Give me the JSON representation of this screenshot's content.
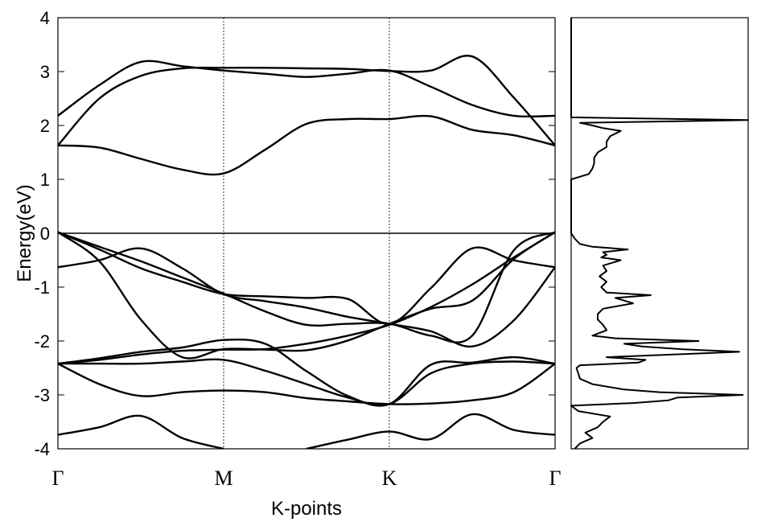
{
  "chart_data": [
    {
      "type": "line",
      "title": "",
      "xlabel": "K-points",
      "ylabel": "Energy(eV)",
      "ylim": [
        -4,
        4
      ],
      "yticks": [
        -4,
        -3,
        -2,
        -1,
        0,
        1,
        2,
        3,
        4
      ],
      "x_ticks": [
        "Γ",
        "M",
        "K",
        "Γ"
      ],
      "x_tick_positions": [
        0,
        1,
        2,
        3
      ],
      "grid": false,
      "fermi_level": 0,
      "x": [
        0,
        0.25,
        0.5,
        0.75,
        1.0,
        1.25,
        1.5,
        1.75,
        2.0,
        2.25,
        2.5,
        2.75,
        3.0
      ],
      "series": [
        {
          "values": [
            2.18,
            2.75,
            3.18,
            3.1,
            3.02,
            2.96,
            2.9,
            2.96,
            3.02,
            2.72,
            2.38,
            2.18,
            2.18
          ]
        },
        {
          "values": [
            1.63,
            2.5,
            2.92,
            3.06,
            3.07,
            3.07,
            3.06,
            3.05,
            3.01,
            3.02,
            3.28,
            2.52,
            1.63
          ]
        },
        {
          "values": [
            1.63,
            1.59,
            1.38,
            1.18,
            1.11,
            1.55,
            2.03,
            2.12,
            2.12,
            2.17,
            1.92,
            1.82,
            1.63
          ]
        },
        {
          "values": [
            0.02,
            -0.52,
            -1.6,
            -2.3,
            -2.15,
            -2.16,
            -2.17,
            -1.99,
            -1.68,
            -1.4,
            -1.25,
            -0.48,
            0.02
          ]
        },
        {
          "values": [
            0.02,
            -0.25,
            -0.52,
            -0.82,
            -1.12,
            -1.45,
            -1.7,
            -1.68,
            -1.68,
            -1.9,
            -1.9,
            -0.32,
            0.02
          ]
        },
        {
          "values": [
            -0.63,
            -0.5,
            -0.28,
            -0.65,
            -1.13,
            -1.26,
            -1.38,
            -1.55,
            -1.68,
            -1.82,
            -2.1,
            -1.62,
            -0.63
          ]
        },
        {
          "values": [
            0.02,
            -0.3,
            -0.65,
            -0.9,
            -1.13,
            -1.17,
            -1.2,
            -1.22,
            -1.68,
            -1.02,
            -0.28,
            -0.5,
            -0.63
          ]
        },
        {
          "values": [
            -2.42,
            -2.35,
            -2.25,
            -2.18,
            -2.16,
            -2.15,
            -2.05,
            -1.9,
            -1.7,
            -1.37,
            -0.95,
            -0.45,
            0.02
          ]
        },
        {
          "values": [
            -2.42,
            -2.32,
            -2.2,
            -2.12,
            -1.98,
            -2.05,
            -2.56,
            -3.02,
            -3.17,
            -2.44,
            -2.4,
            -2.3,
            -2.42
          ]
        },
        {
          "values": [
            -2.42,
            -2.8,
            -3.02,
            -2.95,
            -2.92,
            -2.95,
            -3.06,
            -3.12,
            -3.17,
            -3.16,
            -3.1,
            -2.95,
            -2.42
          ]
        },
        {
          "values": [
            -2.42,
            -2.42,
            -2.42,
            -2.38,
            -2.35,
            -2.55,
            -2.8,
            -3.05,
            -3.17,
            -2.6,
            -2.42,
            -2.38,
            -2.42
          ]
        },
        {
          "values": [
            -3.74,
            -3.6,
            -3.39,
            -3.8,
            -4.0,
            null,
            -4.0,
            -3.83,
            -3.68,
            -3.82,
            -3.36,
            -3.65,
            -3.74
          ]
        }
      ]
    },
    {
      "type": "line",
      "title": "",
      "xlabel": "",
      "ylabel": "",
      "ylim": [
        -4,
        4
      ],
      "orientation": "vertical",
      "grid": false,
      "energy": [
        -4.0,
        -3.9,
        -3.8,
        -3.7,
        -3.6,
        -3.5,
        -3.4,
        -3.3,
        -3.2,
        -3.15,
        -3.1,
        -3.05,
        -3.0,
        -2.95,
        -2.9,
        -2.8,
        -2.7,
        -2.6,
        -2.5,
        -2.45,
        -2.4,
        -2.35,
        -2.3,
        -2.2,
        -2.15,
        -2.1,
        -2.05,
        -2.0,
        -1.95,
        -1.9,
        -1.8,
        -1.7,
        -1.6,
        -1.5,
        -1.4,
        -1.3,
        -1.2,
        -1.15,
        -1.1,
        -1.0,
        -0.9,
        -0.8,
        -0.7,
        -0.6,
        -0.5,
        -0.45,
        -0.4,
        -0.35,
        -0.3,
        -0.25,
        -0.2,
        -0.1,
        0.0,
        0.1,
        0.2,
        0.5,
        0.8,
        1.0,
        1.05,
        1.1,
        1.2,
        1.3,
        1.4,
        1.5,
        1.6,
        1.7,
        1.8,
        1.9,
        1.95,
        2.0,
        2.05,
        2.1,
        2.15,
        2.2,
        2.5,
        3.0,
        3.5,
        4.0
      ],
      "dos": [
        0.02,
        0.05,
        0.12,
        0.08,
        0.15,
        0.18,
        0.22,
        0.04,
        0.0,
        0.35,
        0.55,
        0.6,
        0.97,
        0.5,
        0.3,
        0.12,
        0.05,
        0.04,
        0.03,
        0.05,
        0.38,
        0.42,
        0.2,
        0.95,
        0.62,
        0.4,
        0.3,
        0.72,
        0.25,
        0.12,
        0.2,
        0.18,
        0.15,
        0.15,
        0.18,
        0.35,
        0.25,
        0.45,
        0.2,
        0.17,
        0.2,
        0.16,
        0.2,
        0.18,
        0.28,
        0.17,
        0.2,
        0.18,
        0.32,
        0.12,
        0.05,
        0.02,
        0.0,
        0.0,
        0.0,
        0.0,
        0.0,
        0.0,
        0.05,
        0.1,
        0.12,
        0.13,
        0.13,
        0.15,
        0.2,
        0.2,
        0.22,
        0.28,
        0.18,
        0.12,
        0.05,
        1.0,
        0.0,
        0.0,
        0.0,
        0.0,
        0.0,
        0.0
      ]
    }
  ]
}
